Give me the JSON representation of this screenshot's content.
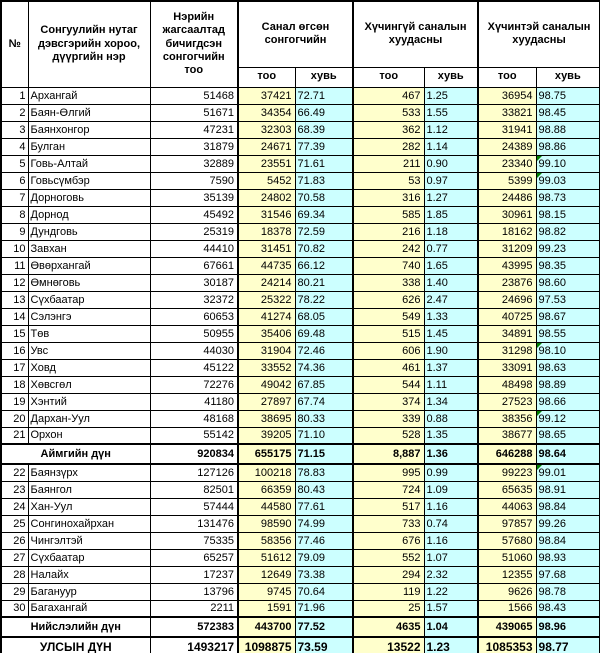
{
  "table": {
    "headers": {
      "num": "№",
      "name": "Сонгуулийн нутаг дэвсгэрийн хороо, дүүргийн нэр",
      "registered": "Нэрийн жагсаалтад бичигдсэн сонгогчийн тоо",
      "voted_group": "Санал өгсөн сонгогчийн",
      "invalid_group": "Хүчингүй саналын хуудасны",
      "valid_group": "Хүчинтэй саналын хуудасны",
      "count": "тоо",
      "percent": "хувь"
    },
    "colors": {
      "count_column_bg": "#FFFFCC",
      "percent_column_bg": "#CCFFFF",
      "border": "#000000",
      "error_flag": "#008000"
    },
    "flagged_row_numbers": [
      "5",
      "6",
      "16",
      "20",
      "22"
    ],
    "aimag_rows": [
      [
        "1",
        "Архангай",
        "51468",
        "37421",
        "72.71",
        "467",
        "1.25",
        "36954",
        "98.75"
      ],
      [
        "2",
        "Баян-Өлгий",
        "51671",
        "34354",
        "66.49",
        "533",
        "1.55",
        "33821",
        "98.45"
      ],
      [
        "3",
        "Баянхонгор",
        "47231",
        "32303",
        "68.39",
        "362",
        "1.12",
        "31941",
        "98.88"
      ],
      [
        "4",
        "Булган",
        "31879",
        "24671",
        "77.39",
        "282",
        "1.14",
        "24389",
        "98.86"
      ],
      [
        "5",
        "Говь-Алтай",
        "32889",
        "23551",
        "71.61",
        "211",
        "0.90",
        "23340",
        "99.10"
      ],
      [
        "6",
        "Говьсүмбэр",
        "7590",
        "5452",
        "71.83",
        "53",
        "0.97",
        "5399",
        "99.03"
      ],
      [
        "7",
        "Дорноговь",
        "35139",
        "24802",
        "70.58",
        "316",
        "1.27",
        "24486",
        "98.73"
      ],
      [
        "8",
        "Дорнод",
        "45492",
        "31546",
        "69.34",
        "585",
        "1.85",
        "30961",
        "98.15"
      ],
      [
        "9",
        "Дундговь",
        "25319",
        "18378",
        "72.59",
        "216",
        "1.18",
        "18162",
        "98.82"
      ],
      [
        "10",
        "Завхан",
        "44410",
        "31451",
        "70.82",
        "242",
        "0.77",
        "31209",
        "99.23"
      ],
      [
        "11",
        "Өвөрхангай",
        "67661",
        "44735",
        "66.12",
        "740",
        "1.65",
        "43995",
        "98.35"
      ],
      [
        "12",
        "Өмнөговь",
        "30187",
        "24214",
        "80.21",
        "338",
        "1.40",
        "23876",
        "98.60"
      ],
      [
        "13",
        "Сүхбаатар",
        "32372",
        "25322",
        "78.22",
        "626",
        "2.47",
        "24696",
        "97.53"
      ],
      [
        "14",
        "Сэлэнгэ",
        "60653",
        "41274",
        "68.05",
        "549",
        "1.33",
        "40725",
        "98.67"
      ],
      [
        "15",
        "Төв",
        "50955",
        "35406",
        "69.48",
        "515",
        "1.45",
        "34891",
        "98.55"
      ],
      [
        "16",
        "Увс",
        "44030",
        "31904",
        "72.46",
        "606",
        "1.90",
        "31298",
        "98.10"
      ],
      [
        "17",
        "Ховд",
        "45122",
        "33552",
        "74.36",
        "461",
        "1.37",
        "33091",
        "98.63"
      ],
      [
        "18",
        "Хөвсгөл",
        "72276",
        "49042",
        "67.85",
        "544",
        "1.11",
        "48498",
        "98.89"
      ],
      [
        "19",
        "Хэнтий",
        "41180",
        "27897",
        "67.74",
        "374",
        "1.34",
        "27523",
        "98.66"
      ],
      [
        "20",
        "Дархан-Уул",
        "48168",
        "38695",
        "80.33",
        "339",
        "0.88",
        "38356",
        "99.12"
      ],
      [
        "21",
        "Орхон",
        "55142",
        "39205",
        "71.10",
        "528",
        "1.35",
        "38677",
        "98.65"
      ]
    ],
    "aimag_total": {
      "label": "Аймгийн дүн",
      "values": [
        "920834",
        "655175",
        "71.15",
        "8,887",
        "1.36",
        "646288",
        "98.64"
      ]
    },
    "city_rows": [
      [
        "22",
        "Баянзүрх",
        "127126",
        "100218",
        "78.83",
        "995",
        "0.99",
        "99223",
        "99.01"
      ],
      [
        "23",
        "Баянгол",
        "82501",
        "66359",
        "80.43",
        "724",
        "1.09",
        "65635",
        "98.91"
      ],
      [
        "24",
        "Хан-Уул",
        "57444",
        "44580",
        "77.61",
        "517",
        "1.16",
        "44063",
        "98.84"
      ],
      [
        "25",
        "Сонгинохайрхан",
        "131476",
        "98590",
        "74.99",
        "733",
        "0.74",
        "97857",
        "99.26"
      ],
      [
        "26",
        "Чингэлтэй",
        "75335",
        "58356",
        "77.46",
        "676",
        "1.16",
        "57680",
        "98.84"
      ],
      [
        "27",
        "Сүхбаатар",
        "65257",
        "51612",
        "79.09",
        "552",
        "1.07",
        "51060",
        "98.93"
      ],
      [
        "28",
        "Налайх",
        "17237",
        "12649",
        "73.38",
        "294",
        "2.32",
        "12355",
        "97.68"
      ],
      [
        "29",
        "Багануур",
        "13796",
        "9745",
        "70.64",
        "119",
        "1.22",
        "9626",
        "98.78"
      ],
      [
        "30",
        "Багахангай",
        "2211",
        "1591",
        "71.96",
        "25",
        "1.57",
        "1566",
        "98.43"
      ]
    ],
    "city_total": {
      "label": "Нийслэлийн дүн",
      "values": [
        "572383",
        "443700",
        "77.52",
        "4635",
        "1.04",
        "439065",
        "98.96"
      ]
    },
    "national_total": {
      "label": "УЛСЫН ДҮН",
      "values": [
        "1493217",
        "1098875",
        "73.59",
        "13522",
        "1.23",
        "1085353",
        "98.77"
      ]
    }
  }
}
